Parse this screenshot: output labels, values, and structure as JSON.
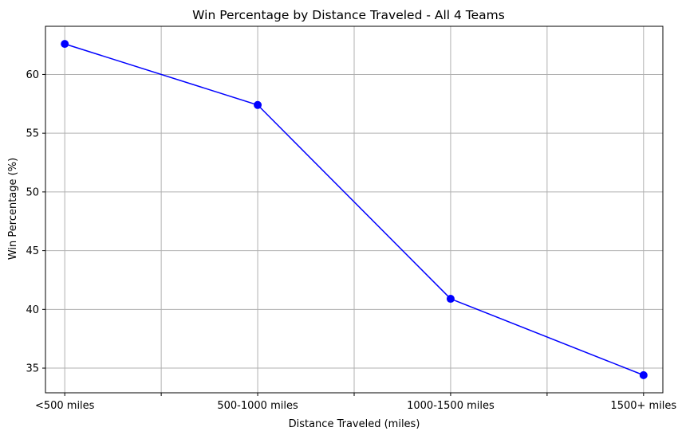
{
  "chart_data": {
    "type": "line",
    "title": "Win Percentage by Distance Traveled - All 4 Teams",
    "xlabel": "Distance Traveled (miles)",
    "ylabel": "Win Percentage (%)",
    "categories": [
      "<500 miles",
      "500-1000 miles",
      "1000-1500 miles",
      "1500+ miles"
    ],
    "series": [
      {
        "values": [
          62.6,
          57.4,
          40.9,
          34.4
        ],
        "color": "#0000ff",
        "marker": "circle"
      }
    ],
    "ylim": [
      32.9,
      64.1
    ],
    "yticks": [
      35,
      40,
      45,
      50,
      55,
      60
    ],
    "grid": true,
    "legend": "none"
  }
}
